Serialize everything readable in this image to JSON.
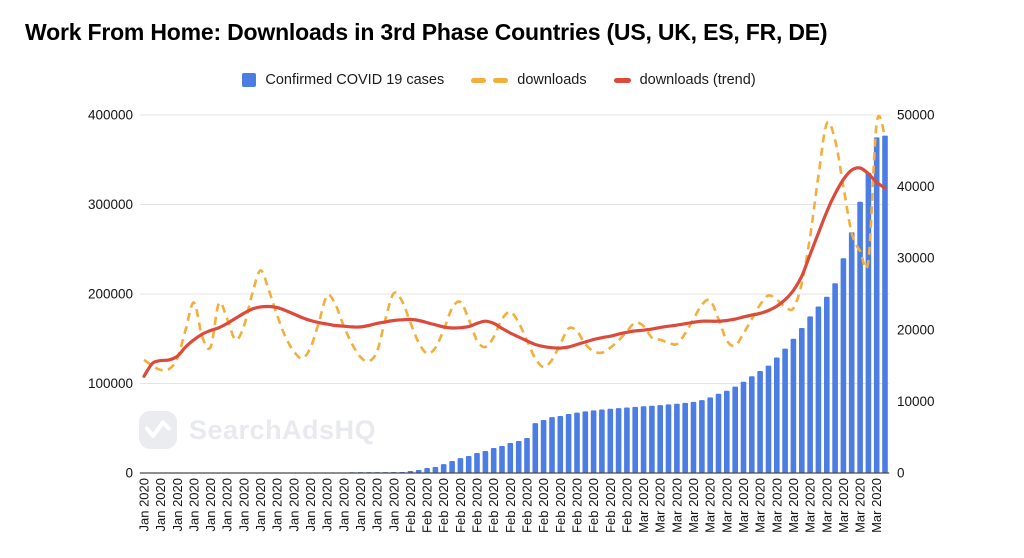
{
  "title": "Work From Home: Downloads in 3rd Phase Countries (US, UK, ES, FR, DE)",
  "watermark": {
    "text": "SearchAdsHQ"
  },
  "colors": {
    "bar_blue": "#4C7DE2",
    "downloads_yellow": "#F3AF3D",
    "trend_red": "#DB4A3B",
    "gridline": "#e4e4e4",
    "baseline": "#4a4a4a",
    "axis_text": "#141414",
    "watermark_gray": "#e8eaed"
  },
  "legend": [
    {
      "label": "Confirmed COVID 19 cases",
      "swatch": "square",
      "color": "#4C7DE2"
    },
    {
      "label": "downloads",
      "swatch": "dashed-line",
      "color": "#F3AF3D"
    },
    {
      "label": "downloads (trend)",
      "swatch": "solid-line",
      "color": "#DB4A3B"
    }
  ],
  "chart_data": {
    "type": "bar",
    "subtype": "combo: daily bars (left axis) + dashed line and trend line (right axis)",
    "grid": "horizontal only",
    "legend_position": "top center",
    "x": {
      "months": [
        {
          "label": "Jan 2020",
          "days": 31
        },
        {
          "label": "Feb 2020",
          "days": 29
        },
        {
          "label": "Mar 2020",
          "days": 30
        }
      ],
      "tick_every": 2,
      "tick_rotation_deg": -90
    },
    "left_axis": {
      "ticks": [
        0,
        100000,
        200000,
        300000,
        400000
      ],
      "max": 400000
    },
    "right_axis": {
      "ticks": [
        0,
        10000,
        20000,
        30000,
        40000,
        50000
      ],
      "max": 50000
    },
    "series": [
      {
        "name": "Confirmed COVID 19 cases",
        "render": "bar",
        "axis": "left",
        "color": "#4C7DE2",
        "values": [
          30,
          40,
          50,
          60,
          75,
          90,
          110,
          130,
          155,
          185,
          220,
          260,
          300,
          345,
          390,
          435,
          480,
          525,
          570,
          615,
          660,
          705,
          750,
          800,
          850,
          900,
          950,
          1000,
          1030,
          1060,
          1080,
          1100,
          2200,
          3350,
          5600,
          6700,
          10000,
          13400,
          16700,
          19000,
          22300,
          24600,
          27900,
          30200,
          33500,
          35800,
          39100,
          55800,
          59200,
          62500,
          63700,
          65900,
          67500,
          68800,
          70000,
          71000,
          71800,
          72500,
          73200,
          73900,
          74500,
          75200,
          75900,
          76600,
          77400,
          78300,
          79400,
          81500,
          84500,
          88500,
          92000,
          96500,
          102000,
          108000,
          114000,
          120000,
          129000,
          139000,
          150000,
          162000,
          175000,
          186000,
          197000,
          212000,
          240000,
          269000,
          303000,
          335500,
          375000,
          377000
        ]
      },
      {
        "name": "downloads",
        "render": "line",
        "style": "dashed",
        "axis": "right",
        "color": "#F3AF3D",
        "values": [
          15800,
          15000,
          14400,
          14500,
          16000,
          20000,
          23800,
          19000,
          17600,
          23700,
          21500,
          18600,
          20500,
          25000,
          28300,
          25500,
          22000,
          19000,
          17000,
          16000,
          17500,
          21000,
          24800,
          23500,
          20500,
          18000,
          16200,
          15600,
          17000,
          21500,
          25100,
          24000,
          21000,
          18200,
          16700,
          17500,
          20000,
          23000,
          23900,
          21500,
          18500,
          17600,
          19000,
          21500,
          22500,
          21000,
          18500,
          16000,
          14800,
          15800,
          18000,
          20200,
          19800,
          18000,
          17000,
          16800,
          17500,
          18500,
          19800,
          21000,
          20500,
          18900,
          18600,
          18200,
          18000,
          19500,
          21500,
          23500,
          24100,
          21500,
          18500,
          17800,
          19500,
          21500,
          23500,
          24800,
          24200,
          23200,
          23000,
          26500,
          33000,
          41500,
          48800,
          46500,
          40000,
          33500,
          31000,
          29700,
          48900,
          47000
        ]
      },
      {
        "name": "downloads (trend)",
        "render": "line",
        "style": "solid",
        "axis": "right",
        "color": "#DB4A3B",
        "values": [
          13500,
          15300,
          15700,
          15800,
          16300,
          17600,
          18600,
          19400,
          19900,
          20300,
          20900,
          21600,
          22300,
          22900,
          23200,
          23250,
          23100,
          22700,
          22200,
          21700,
          21300,
          21000,
          20800,
          20600,
          20500,
          20400,
          20400,
          20600,
          20900,
          21100,
          21300,
          21400,
          21450,
          21300,
          21000,
          20700,
          20400,
          20250,
          20300,
          20450,
          20900,
          21200,
          20900,
          20200,
          19550,
          19000,
          18450,
          17950,
          17650,
          17500,
          17450,
          17600,
          17950,
          18300,
          18650,
          18900,
          19100,
          19400,
          19650,
          19850,
          19950,
          20100,
          20330,
          20500,
          20650,
          20850,
          21050,
          21200,
          21200,
          21200,
          21300,
          21500,
          21800,
          22050,
          22300,
          22700,
          23300,
          24200,
          25500,
          27500,
          30500,
          33500,
          36500,
          39000,
          41000,
          42300,
          42600,
          41800,
          40600,
          39800
        ]
      }
    ]
  }
}
